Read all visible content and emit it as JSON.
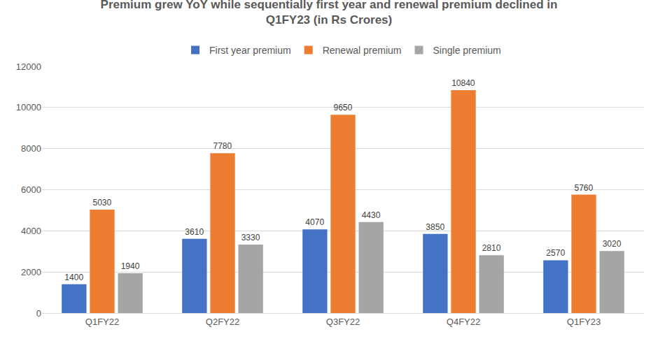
{
  "chart_data": {
    "type": "bar",
    "title": "Premium grew YoY while sequentially first year and renewal premium declined in Q1FY23 (in Rs Crores)",
    "categories": [
      "Q1FY22",
      "Q2FY22",
      "Q3FY22",
      "Q4FY22",
      "Q1FY23"
    ],
    "series": [
      {
        "name": "First year premium",
        "color": "#4472C4",
        "values": [
          1400,
          3610,
          4070,
          3850,
          2570
        ]
      },
      {
        "name": "Renewal premium",
        "color": "#ED7D31",
        "values": [
          5030,
          7780,
          9650,
          10840,
          5760
        ]
      },
      {
        "name": "Single premium",
        "color": "#A5A5A5",
        "values": [
          1940,
          3330,
          4430,
          2810,
          3020
        ]
      }
    ],
    "ylim": [
      0,
      12000
    ],
    "yticks": [
      0,
      2000,
      4000,
      6000,
      8000,
      10000,
      12000
    ],
    "grid": true,
    "legend": "top",
    "data_labels": true
  }
}
